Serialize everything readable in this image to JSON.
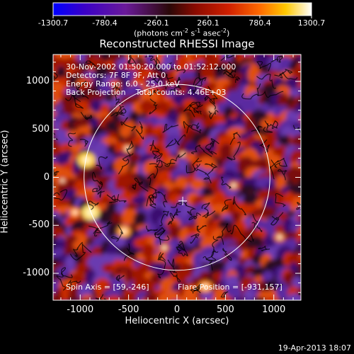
{
  "colorbar": {
    "tick_labels": [
      "-1300.7",
      "-780.4",
      "-260.1",
      "260.1",
      "780.4",
      "1300.7"
    ],
    "units_text": "(photons cm",
    "units_exp1": "-2",
    "units_mid": " s",
    "units_exp2": "-1",
    "units_mid2": " asec",
    "units_exp3": "-2",
    "units_close": ")",
    "color_stops": [
      "#0000ff",
      "#3a00c8",
      "#6a1a9a",
      "#2a0808",
      "#8a0a00",
      "#d02000",
      "#ff6a00",
      "#ffc800",
      "#ffffff"
    ]
  },
  "plot": {
    "title": "Reconstructed RHESSI Image",
    "info_lines": [
      "30-Nov-2002 01:50:20.000 to 01:52:12.000",
      "Detectors: 7F 8F 9F, Att 0",
      "Energy Range: 6.0 - 25.0 keV",
      "Back Projection    Total counts: 4.46E+03"
    ],
    "spin_axis": "Spin Axis = [59,-246]",
    "flare_position": "Flare Position = [-931,157]",
    "x_axis_label": "Heliocentric X (arcsec)",
    "y_axis_label": "Heliocentric Y (arcsec)",
    "x_ticks": [
      "-1000",
      "-500",
      "0",
      "500",
      "1000"
    ],
    "y_ticks": [
      "1000",
      "500",
      "0",
      "-500",
      "-1000"
    ],
    "x_range": [
      -1280,
      1280
    ],
    "y_range": [
      -1280,
      1280
    ],
    "solar_disk_radius_arcsec": 960,
    "spin_axis_marker": [
      59,
      -246
    ]
  },
  "footer": {
    "timestamp": "19-Apr-2013 18:07"
  }
}
